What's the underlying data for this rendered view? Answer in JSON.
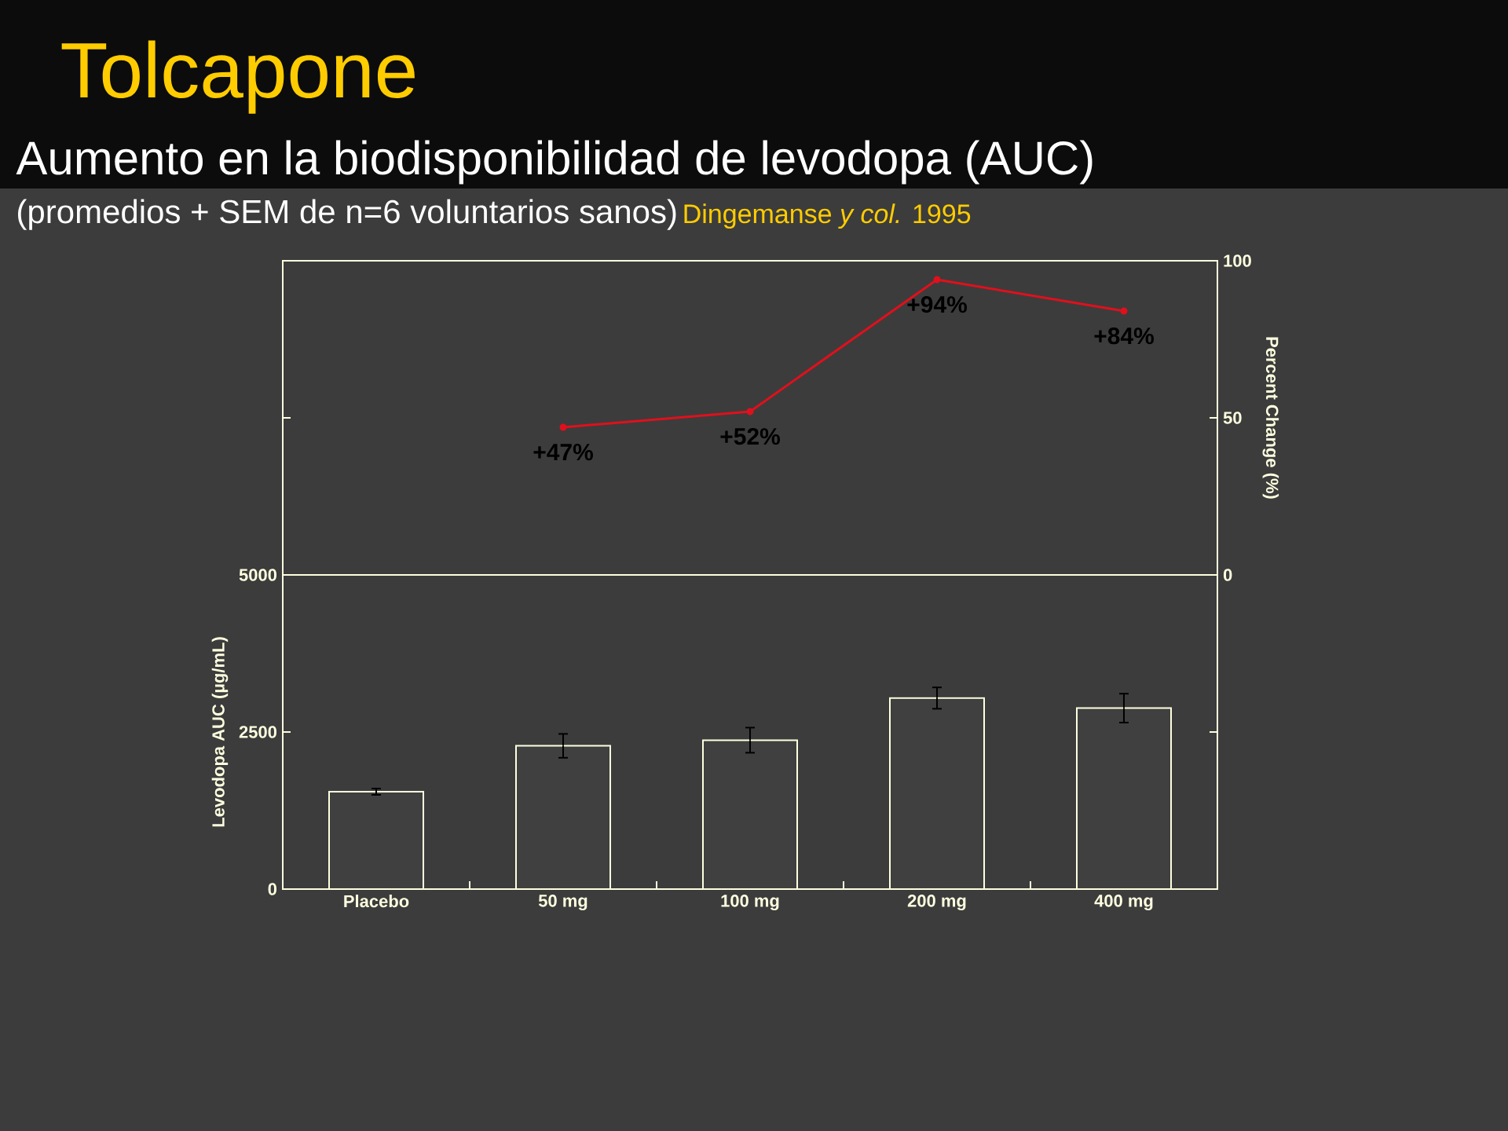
{
  "chart_data": [
    {
      "type": "line",
      "title": "Tolcapone",
      "subtitle": "Aumento en la biodisponibilidad de levodopa (AUC)",
      "annotations": [
        "(promedios + SEM de n=6  voluntarios sanos)",
        "Dingemanse *y col.* 1995"
      ],
      "categories": [
        null,
        null,
        null,
        null,
        null
      ],
      "series": [
        {
          "color": "#e0101c",
          "values": [
            null,
            47,
            52,
            94,
            84
          ],
          "value_labels": [
            null,
            "+47%",
            "+52%",
            "+94%",
            "+84%"
          ]
        }
      ],
      "ylim": [
        0,
        100
      ],
      "yticks": [
        0,
        50,
        100
      ],
      "ylabel": "Percent Change (%)",
      "marker": "circle"
    },
    {
      "type": "bar",
      "categories": [
        "Placebo",
        "50 mg",
        "100 mg",
        "200 mg",
        "400 mg"
      ],
      "values": [
        1550,
        2280,
        2370,
        3040,
        2880
      ],
      "errors": [
        50,
        190,
        200,
        170,
        230
      ],
      "color": "#404040",
      "ylim": [
        0,
        5000
      ],
      "yticks": [
        0,
        2500,
        5000
      ],
      "ylabel": "Levodopa AUC (µg/mL)"
    }
  ]
}
